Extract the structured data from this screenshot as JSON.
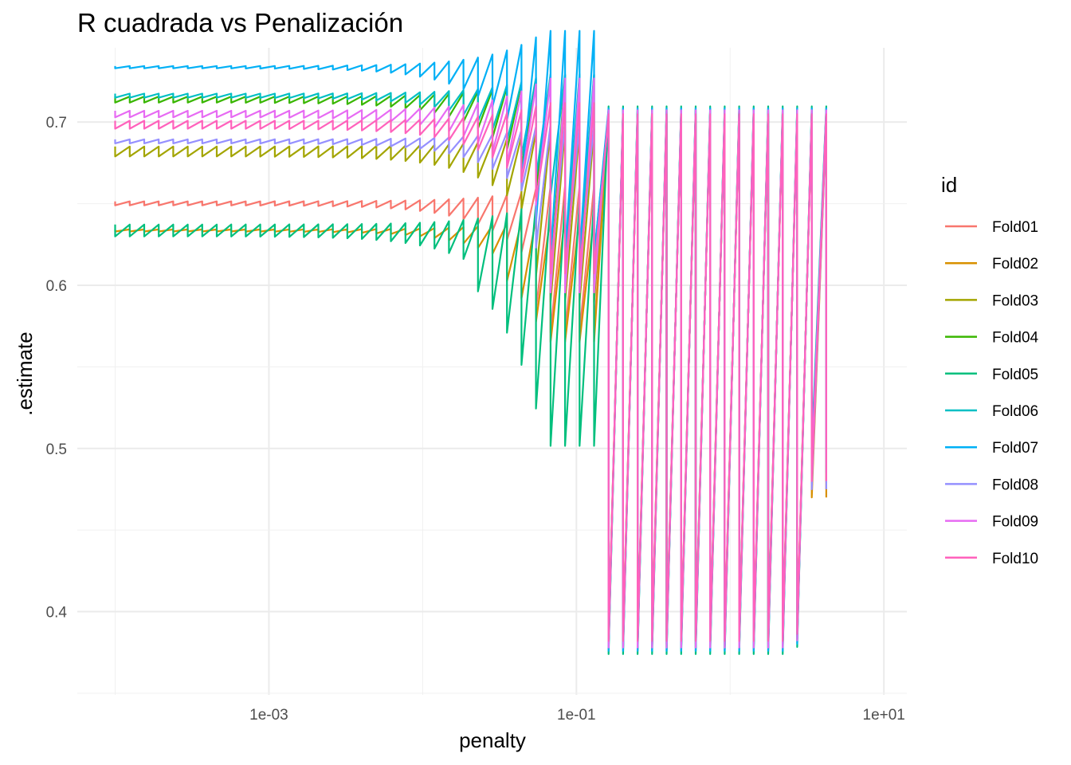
{
  "chart_data": {
    "type": "line",
    "title": "R cuadrada vs Penalización",
    "xlabel": "penalty",
    "ylabel": ".estimate",
    "x_scale": "log10",
    "xlim": [
      5.67e-05,
      14.1
    ],
    "ylim": [
      0.349,
      0.7455
    ],
    "x_ticks": [
      0.001,
      0.1,
      10
    ],
    "x_tick_labels": [
      "1e-03",
      "1e-01",
      "1e+01"
    ],
    "y_ticks": [
      0.4,
      0.5,
      0.6,
      0.7
    ],
    "y_tick_labels": [
      "0.4",
      "0.5",
      "0.6",
      "0.7"
    ],
    "grid": true,
    "legend": {
      "title": "id",
      "position": "right"
    },
    "penalty_range": [
      0.0001,
      4.217
    ],
    "series": [
      {
        "name": "Fold01",
        "color": "#F8766D",
        "plateau": 0.651,
        "spread": 0.002,
        "turn": 0.05,
        "dir": -1,
        "amp": 0.35,
        "mix": 0.3
      },
      {
        "name": "Fold02",
        "color": "#D89000",
        "plateau": 0.634,
        "spread": 0.001,
        "turn": 0.035,
        "dir": -1,
        "amp": 0.3,
        "mix": 0.2
      },
      {
        "name": "Fold03",
        "color": "#A3A500",
        "plateau": 0.684,
        "spread": 0.005,
        "turn": 0.045,
        "dir": -1,
        "amp": 0.33,
        "mix": 0.4
      },
      {
        "name": "Fold04",
        "color": "#39B600",
        "plateau": 0.715,
        "spread": 0.003,
        "turn": 0.06,
        "dir": -1,
        "amp": 0.36,
        "mix": 0.6
      },
      {
        "name": "Fold05",
        "color": "#00BF7D",
        "plateau": 0.636,
        "spread": 0.006,
        "turn": 0.02,
        "dir": -1,
        "amp": 0.31,
        "mix": 0.8
      },
      {
        "name": "Fold06",
        "color": "#00BFC4",
        "plateau": 0.717,
        "spread": 0.002,
        "turn": 0.07,
        "dir": -1,
        "amp": 0.34,
        "mix": 0.5
      },
      {
        "name": "Fold07",
        "color": "#00B0F6",
        "plateau": 0.734,
        "spread": 0.001,
        "turn": 0.04,
        "dir": 1,
        "amp": 0.35,
        "mix": 0.7
      },
      {
        "name": "Fold08",
        "color": "#9590FF",
        "plateau": 0.689,
        "spread": 0.002,
        "turn": 0.05,
        "dir": -1,
        "amp": 0.32,
        "mix": 0.3
      },
      {
        "name": "Fold09",
        "color": "#E76BF3",
        "plateau": 0.706,
        "spread": 0.003,
        "turn": 0.06,
        "dir": 1,
        "amp": 0.33,
        "mix": 0.6
      },
      {
        "name": "Fold10",
        "color": "#FF62BC",
        "plateau": 0.7,
        "spread": 0.004,
        "turn": 0.055,
        "dir": -1,
        "amp": 0.32,
        "mix": 0.4
      }
    ]
  }
}
